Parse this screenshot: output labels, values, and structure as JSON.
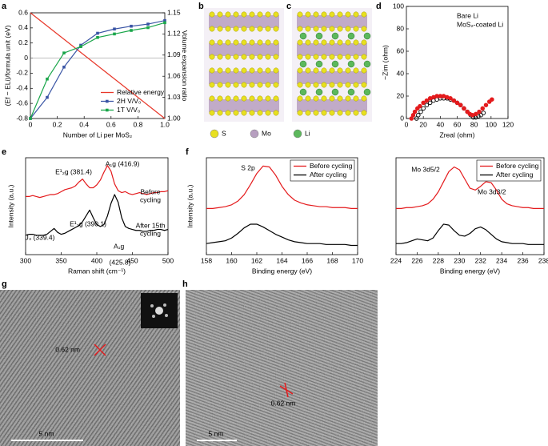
{
  "panel_labels": [
    "a",
    "b",
    "c",
    "d",
    "e",
    "f",
    "g",
    "h"
  ],
  "structures": {
    "legend": [
      "S",
      "Mo",
      "Li"
    ]
  },
  "micrographs": [
    {
      "annotation": "0.62 nm",
      "scale_bar": "5 nm"
    },
    {
      "annotation": "0.62 nm",
      "scale_bar": "5 nm"
    }
  ],
  "chart_data": [
    {
      "type": "line",
      "xlabel": "Number of Li per MoS₂",
      "ylabel": "(Ef − ELi)/formula unit (eV)",
      "y2label": "Volume expansion ratio",
      "xlim": [
        0,
        1
      ],
      "xticks": [
        0,
        0.2,
        0.4,
        0.6,
        0.8,
        {
          "value": 1,
          "label": "1.0"
        }
      ],
      "ylim": [
        -0.8,
        0.6
      ],
      "yticks": [
        -0.8,
        -0.6,
        -0.4,
        -0.2,
        0,
        0.2,
        0.4,
        0.6
      ],
      "y2lim": [
        1,
        1.15
      ],
      "y2ticks": [
        {
          "value": 1,
          "label": "1.00"
        },
        {
          "value": 1.03,
          "label": "1.03"
        },
        {
          "value": 1.06,
          "label": "1.06"
        },
        {
          "value": 1.09,
          "label": "1.09"
        },
        {
          "value": 1.12,
          "label": "1.12"
        },
        {
          "value": 1.15,
          "label": "1.15"
        }
      ],
      "reference_line": 0,
      "legend": "bottom-right",
      "x": [
        0,
        0.125,
        0.25,
        0.375,
        0.5,
        0.625,
        0.75,
        0.875,
        1
      ],
      "series": [
        {
          "name": "Relative energy",
          "color": "#e8382a",
          "values": [
            0.6,
            0.425,
            0.25,
            0.075,
            -0.1,
            -0.275,
            -0.45,
            -0.625,
            -0.8
          ]
        },
        {
          "name": "2H V/V₀",
          "color": "#3a55a5",
          "axis": "y2",
          "marker": "square",
          "values": [
            1.0,
            1.03,
            1.073,
            1.104,
            1.121,
            1.127,
            1.131,
            1.134,
            1.139
          ]
        },
        {
          "name": "1T V/V₀",
          "color": "#1aa64a",
          "axis": "y2",
          "marker": "square",
          "values": [
            1.0,
            1.056,
            1.093,
            1.102,
            1.115,
            1.12,
            1.125,
            1.129,
            1.136
          ]
        }
      ]
    },
    {
      "type": "scatter",
      "xlabel": "Zreal (ohm)",
      "ylabel": "−Zim (ohm)",
      "xlim": [
        0,
        120
      ],
      "xticks": [
        0,
        20,
        40,
        60,
        80,
        100,
        120
      ],
      "ylim": [
        0,
        100
      ],
      "yticks": [
        0,
        20,
        40,
        60,
        80,
        100
      ],
      "legend": "top-right",
      "series": [
        {
          "name": "Bare Li",
          "color": "#000000",
          "x": [
            12,
            14,
            17,
            20,
            24,
            28,
            32,
            36,
            40,
            44,
            48,
            52,
            56,
            60,
            64,
            68,
            72,
            76,
            79,
            82,
            85,
            88,
            91
          ],
          "values": [
            0,
            3,
            6,
            9,
            12,
            14,
            16,
            17,
            18,
            18,
            18,
            17,
            16,
            14,
            12,
            9,
            6,
            3,
            1,
            1,
            2,
            3,
            5
          ]
        },
        {
          "name": "MoS₂-coated Li",
          "color": "#e41a1c",
          "x": [
            6,
            8,
            10,
            13,
            16,
            20,
            24,
            28,
            32,
            36,
            40,
            44,
            48,
            52,
            56,
            60,
            64,
            68,
            72,
            75,
            78,
            82,
            86,
            90,
            94,
            98,
            101
          ],
          "values": [
            0,
            3,
            6,
            9,
            11,
            14,
            16,
            18,
            19,
            20,
            20,
            20,
            19,
            18,
            16,
            14,
            12,
            9,
            6,
            4,
            3,
            4,
            6,
            9,
            12,
            15,
            17
          ]
        }
      ]
    },
    {
      "type": "line",
      "xlabel": "Raman shift (cm⁻¹)",
      "ylabel": "Intensity (a.u.)",
      "xlim": [
        300,
        500
      ],
      "xticks": [
        300,
        350,
        400,
        450,
        500
      ],
      "ylim": [
        0,
        10
      ],
      "x": [
        300,
        305,
        310,
        315,
        320,
        325,
        330,
        335,
        340,
        345,
        350,
        355,
        360,
        365,
        370,
        375,
        380,
        385,
        390,
        395,
        400,
        405,
        410,
        415,
        420,
        425,
        430,
        435,
        440,
        445,
        450,
        455,
        460,
        465,
        470,
        475,
        480,
        485,
        490,
        495,
        500
      ],
      "series": [
        {
          "color": "#e41a1c",
          "values": [
            6.0,
            6.0,
            6.1,
            6.0,
            5.9,
            6.0,
            6.1,
            6.2,
            6.2,
            6.3,
            6.5,
            6.7,
            6.8,
            6.9,
            7.1,
            7.5,
            7.8,
            7.3,
            6.9,
            6.9,
            7.2,
            7.7,
            8.5,
            9.2,
            8.6,
            7.3,
            6.6,
            6.4,
            6.5,
            6.3,
            6.2,
            6.3,
            6.4,
            6.3,
            6.2,
            6.3,
            6.4,
            6.4,
            6.5,
            6.5,
            6.6
          ]
        },
        {
          "color": "#000000",
          "values": [
            2.0,
            2.1,
            2.1,
            2.0,
            2.0,
            2.0,
            2.1,
            2.4,
            2.7,
            2.3,
            2.1,
            2.2,
            2.4,
            2.6,
            2.8,
            3.0,
            3.4,
            4.0,
            4.6,
            3.8,
            3.1,
            2.9,
            3.1,
            4.0,
            5.3,
            6.2,
            5.4,
            3.8,
            2.9,
            2.7,
            2.6,
            2.5,
            2.5,
            2.4,
            2.4,
            2.5,
            2.5,
            2.6,
            2.6,
            2.5,
            2.6
          ]
        }
      ],
      "annotations": [
        {
          "text": "E¹₂g (381.4)",
          "color": "#e41a1c"
        },
        {
          "text": "A₁g (416.9)",
          "color": "#e41a1c"
        },
        {
          "text": "Before",
          "color": "#e41a1c"
        },
        {
          "text": "cycling",
          "color": "#e41a1c"
        },
        {
          "text": "E¹₂g (390.1)",
          "color": "#000000"
        },
        {
          "text": "J₃ (339.4)",
          "color": "#000000"
        },
        {
          "text": "A₁g",
          "color": "#000000"
        },
        {
          "text": "(425.8)",
          "color": "#000000"
        },
        {
          "text": "After 15th",
          "color": "#000000"
        },
        {
          "text": "cycling",
          "color": "#000000"
        }
      ]
    },
    {
      "type": "line",
      "xlabel": "Binding energy (eV)",
      "ylabel": "Intensity (a.u.)",
      "xlim": [
        158,
        170
      ],
      "xticks": [
        158,
        160,
        162,
        164,
        166,
        168,
        170
      ],
      "ylim": [
        0,
        10.5
      ],
      "legend": "top-right",
      "x": [
        158,
        158.5,
        159,
        159.5,
        160,
        160.5,
        161,
        161.5,
        162,
        162.5,
        163,
        163.5,
        164,
        164.5,
        165,
        165.5,
        166,
        166.5,
        167,
        167.5,
        168,
        168.5,
        169,
        169.5,
        170
      ],
      "series": [
        {
          "name": "Before cycling",
          "color": "#e41a1c",
          "values": [
            5.0,
            5.0,
            5.1,
            5.2,
            5.4,
            5.8,
            6.5,
            7.6,
            8.8,
            9.6,
            9.5,
            8.6,
            7.4,
            6.5,
            5.9,
            5.6,
            5.4,
            5.3,
            5.2,
            5.2,
            5.1,
            5.1,
            5.1,
            5.0,
            5.0
          ]
        },
        {
          "name": "After cycling",
          "color": "#000000",
          "values": [
            1.2,
            1.3,
            1.4,
            1.5,
            1.8,
            2.3,
            2.9,
            3.3,
            3.3,
            3.0,
            2.6,
            2.2,
            1.9,
            1.6,
            1.4,
            1.3,
            1.2,
            1.2,
            1.2,
            1.1,
            1.1,
            1.1,
            1.1,
            1.0,
            1.0
          ]
        }
      ],
      "annotations": [
        {
          "text": "S 2p",
          "color": "#000000"
        }
      ]
    },
    {
      "type": "line",
      "xlabel": "Binding energy (eV)",
      "xlim": [
        224,
        238
      ],
      "xticks": [
        224,
        226,
        228,
        230,
        232,
        234,
        236,
        238
      ],
      "ylim": [
        0,
        10.5
      ],
      "legend": "top-right",
      "x": [
        224,
        224.5,
        225,
        225.5,
        226,
        226.5,
        227,
        227.5,
        228,
        228.5,
        229,
        229.5,
        230,
        230.5,
        231,
        231.5,
        232,
        232.5,
        233,
        233.5,
        234,
        234.5,
        235,
        235.5,
        236,
        236.5,
        237,
        237.5,
        238
      ],
      "series": [
        {
          "name": "Before cycling",
          "color": "#e41a1c",
          "values": [
            5.0,
            5.0,
            5.1,
            5.1,
            5.2,
            5.3,
            5.5,
            6.0,
            6.8,
            7.9,
            9.0,
            9.5,
            9.2,
            8.2,
            7.2,
            7.0,
            7.4,
            7.9,
            7.8,
            7.0,
            6.0,
            5.5,
            5.3,
            5.2,
            5.1,
            5.1,
            5.0,
            5.0,
            5.0
          ]
        },
        {
          "name": "After cycling",
          "color": "#000000",
          "values": [
            1.2,
            1.2,
            1.3,
            1.5,
            1.7,
            1.6,
            1.5,
            1.8,
            2.6,
            3.3,
            3.2,
            2.6,
            2.1,
            2.0,
            2.3,
            2.8,
            3.0,
            2.7,
            2.2,
            1.7,
            1.4,
            1.3,
            1.2,
            1.2,
            1.2,
            1.1,
            1.1,
            1.1,
            1.1
          ]
        }
      ],
      "annotations": [
        {
          "text": "Mo 3d5/2",
          "color": "#000000"
        },
        {
          "text": "Mo 3d3/2",
          "color": "#000000"
        }
      ]
    }
  ]
}
